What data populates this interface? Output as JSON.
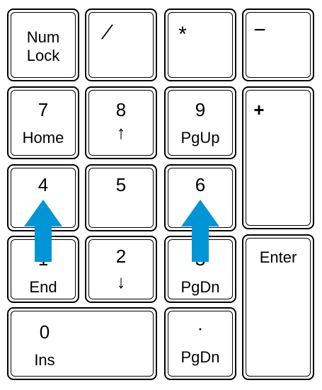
{
  "keys": {
    "numlock": {
      "line1": "Num",
      "line2": "Lock"
    },
    "divide": {
      "symbol": "/"
    },
    "multiply": {
      "symbol": "*"
    },
    "minus": {
      "symbol": "−"
    },
    "k7": {
      "num": "7",
      "sub": "Home"
    },
    "k8": {
      "num": "8",
      "sub": "↑"
    },
    "k9": {
      "num": "9",
      "sub": "PgUp"
    },
    "plus": {
      "symbol": "+"
    },
    "k4": {
      "num": "4",
      "sub": "←"
    },
    "k5": {
      "num": "5"
    },
    "k6": {
      "num": "6",
      "sub": "→"
    },
    "k1": {
      "num": "1",
      "sub": "End"
    },
    "k2": {
      "num": "2",
      "sub": "↓"
    },
    "k3": {
      "num": "3",
      "sub": "PgDn"
    },
    "enter": {
      "label": "Enter"
    },
    "k0": {
      "num": "0",
      "sub": "Ins"
    },
    "decimal": {
      "num": "·",
      "sub": "PgDn"
    }
  },
  "annotations": {
    "arrow_color": "#0096d6",
    "arrows": [
      {
        "name": "up-arrow-left",
        "direction": "up"
      },
      {
        "name": "up-arrow-right",
        "direction": "up"
      }
    ]
  }
}
